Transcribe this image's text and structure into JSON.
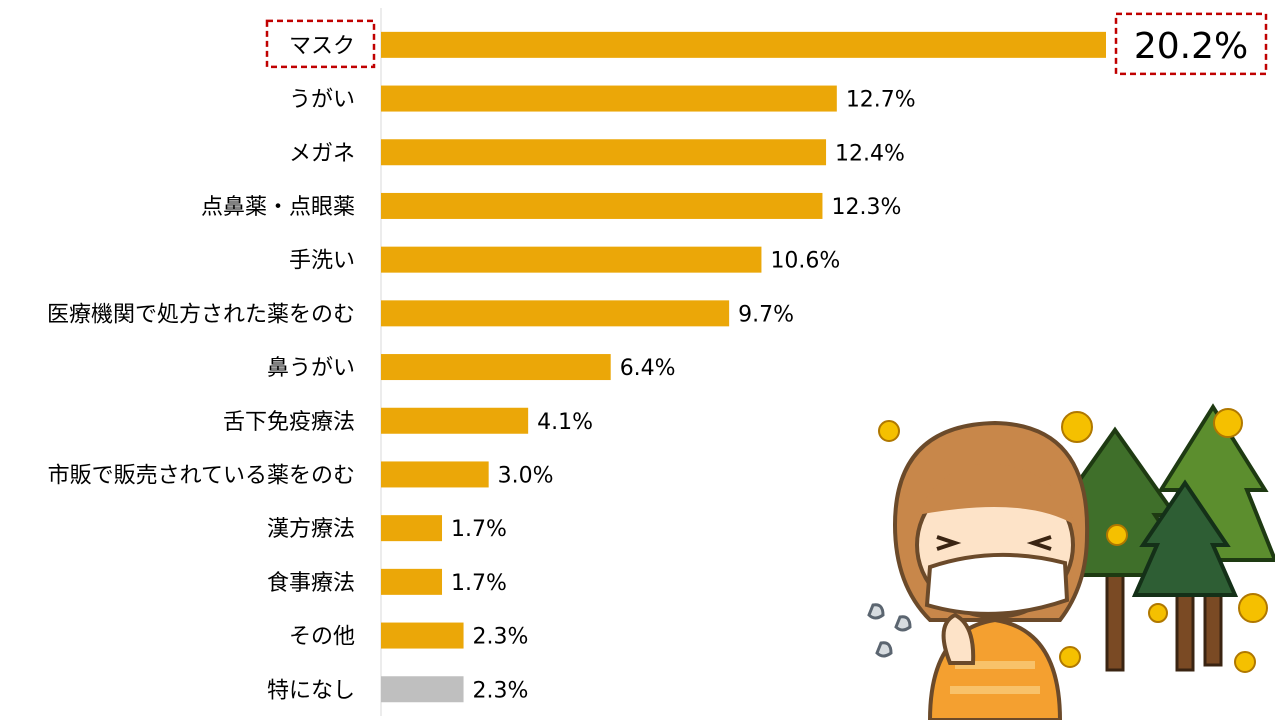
{
  "colors": {
    "bar": "#EBA708",
    "bar_none": "#BFBFBF",
    "axis": "#D9D9D9",
    "text": "#000000",
    "highlight": "#C00000"
  },
  "chart_data": {
    "type": "bar",
    "orientation": "horizontal",
    "title": "",
    "xlabel": "",
    "ylabel": "",
    "xlim": [
      0,
      20.2
    ],
    "grid": false,
    "legend": "none",
    "categories": [
      "マスク",
      "うがい",
      "メガネ",
      "点鼻薬・点眼薬",
      "手洗い",
      "医療機関で処方された薬をのむ",
      "鼻うがい",
      "舌下免疫療法",
      "市販で販売されている薬をのむ",
      "漢方療法",
      "食事療法",
      "その他",
      "特になし"
    ],
    "values": [
      20.2,
      12.7,
      12.4,
      12.3,
      10.6,
      9.7,
      6.4,
      4.1,
      3.0,
      1.7,
      1.7,
      2.3,
      2.3
    ],
    "value_labels": [
      "20.2%",
      "12.7%",
      "12.4%",
      "12.3%",
      "10.6%",
      "9.7%",
      "6.4%",
      "4.1%",
      "3.0%",
      "1.7%",
      "1.7%",
      "2.3%",
      "2.3%"
    ],
    "highlight_index": 0,
    "gray_index": 12
  },
  "illustration": {
    "subject": "woman-with-mask-pollen-trees",
    "icons": [
      "pollen-icon",
      "tree-icon",
      "sweat-drop-icon"
    ]
  }
}
